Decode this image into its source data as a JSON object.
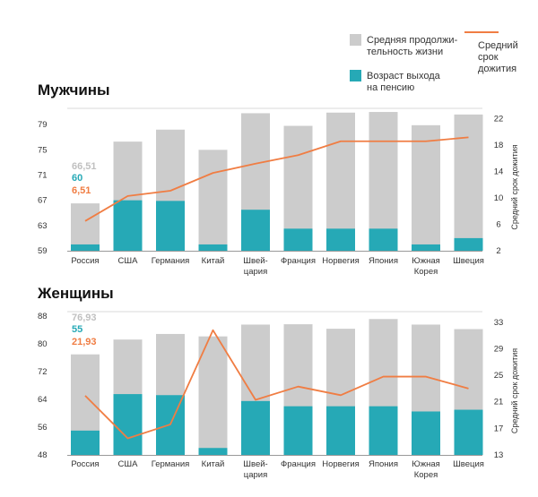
{
  "colors": {
    "life": "#cccccc",
    "retire": "#26a9b6",
    "line": "#f07d43",
    "note_life": "#c0c0c0",
    "note_retire": "#26a9b6",
    "note_line": "#f07d43"
  },
  "legend": {
    "life_line1": "Средняя продолжи-",
    "life_line2": "тельность жизни",
    "retire_line1": "Возраст выхода",
    "retire_line2": "на пенсию",
    "line_line1": "Средний",
    "line_line2": "срок",
    "line_line3": "дожития"
  },
  "chart_data": [
    {
      "type": "bar",
      "title": "Мужчины",
      "categories": [
        [
          "Россия"
        ],
        [
          "США"
        ],
        [
          "Германия"
        ],
        [
          "Китай"
        ],
        [
          "Швей-",
          "цария"
        ],
        [
          "Франция"
        ],
        [
          "Норвегия"
        ],
        [
          "Япония"
        ],
        [
          "Южная",
          "Корея"
        ],
        [
          "Швеция"
        ]
      ],
      "series": [
        {
          "name": "Средняя продолжительность жизни",
          "values": [
            66.51,
            76.3,
            78.2,
            75.0,
            80.8,
            78.8,
            80.9,
            81.0,
            78.9,
            80.6
          ]
        },
        {
          "name": "Возраст выхода на пенсию",
          "values": [
            60,
            67,
            66.9,
            60,
            65.5,
            62.5,
            62.5,
            62.5,
            60,
            61
          ]
        },
        {
          "name": "Средний срок дожития",
          "values": [
            6.51,
            10.3,
            11.1,
            13.8,
            15.2,
            16.5,
            18.6,
            18.6,
            18.6,
            19.2
          ]
        }
      ],
      "ylim_left": [
        59,
        82
      ],
      "yticks_left": [
        59,
        63,
        67,
        71,
        75,
        79
      ],
      "ylim_right": [
        2,
        24
      ],
      "yticks_right": [
        2,
        6,
        10,
        14,
        18,
        22
      ],
      "ylabel_right": "Средний срок дожития",
      "notes": [
        "66,51",
        "60",
        "6,51"
      ]
    },
    {
      "type": "bar",
      "title": "Женщины",
      "categories": [
        [
          "Россия"
        ],
        [
          "США"
        ],
        [
          "Германия"
        ],
        [
          "Китай"
        ],
        [
          "Швей-",
          "цария"
        ],
        [
          "Франция"
        ],
        [
          "Норвегия"
        ],
        [
          "Япония"
        ],
        [
          "Южная",
          "Корея"
        ],
        [
          "Швеция"
        ]
      ],
      "series": [
        {
          "name": "Средняя продолжительность жизни",
          "values": [
            76.93,
            81.2,
            82.8,
            82.1,
            85.5,
            85.6,
            84.3,
            87.1,
            85.5,
            84.2
          ]
        },
        {
          "name": "Возраст выхода на пенсию",
          "values": [
            55,
            65.5,
            65.2,
            50,
            63.5,
            62,
            62,
            62,
            60.5,
            61
          ]
        },
        {
          "name": "Средний срок дожития",
          "values": [
            21.93,
            15.5,
            17.6,
            31.8,
            21.3,
            23.3,
            22.0,
            24.8,
            24.8,
            23.0
          ]
        }
      ],
      "ylim_left": [
        48,
        90
      ],
      "yticks_left": [
        48,
        56,
        64,
        72,
        80,
        88
      ],
      "ylim_right": [
        13,
        35
      ],
      "yticks_right": [
        13,
        17,
        21,
        25,
        29,
        33
      ],
      "ylabel_right": "Средний срок дожития",
      "notes": [
        "76,93",
        "55",
        "21,93"
      ]
    }
  ]
}
